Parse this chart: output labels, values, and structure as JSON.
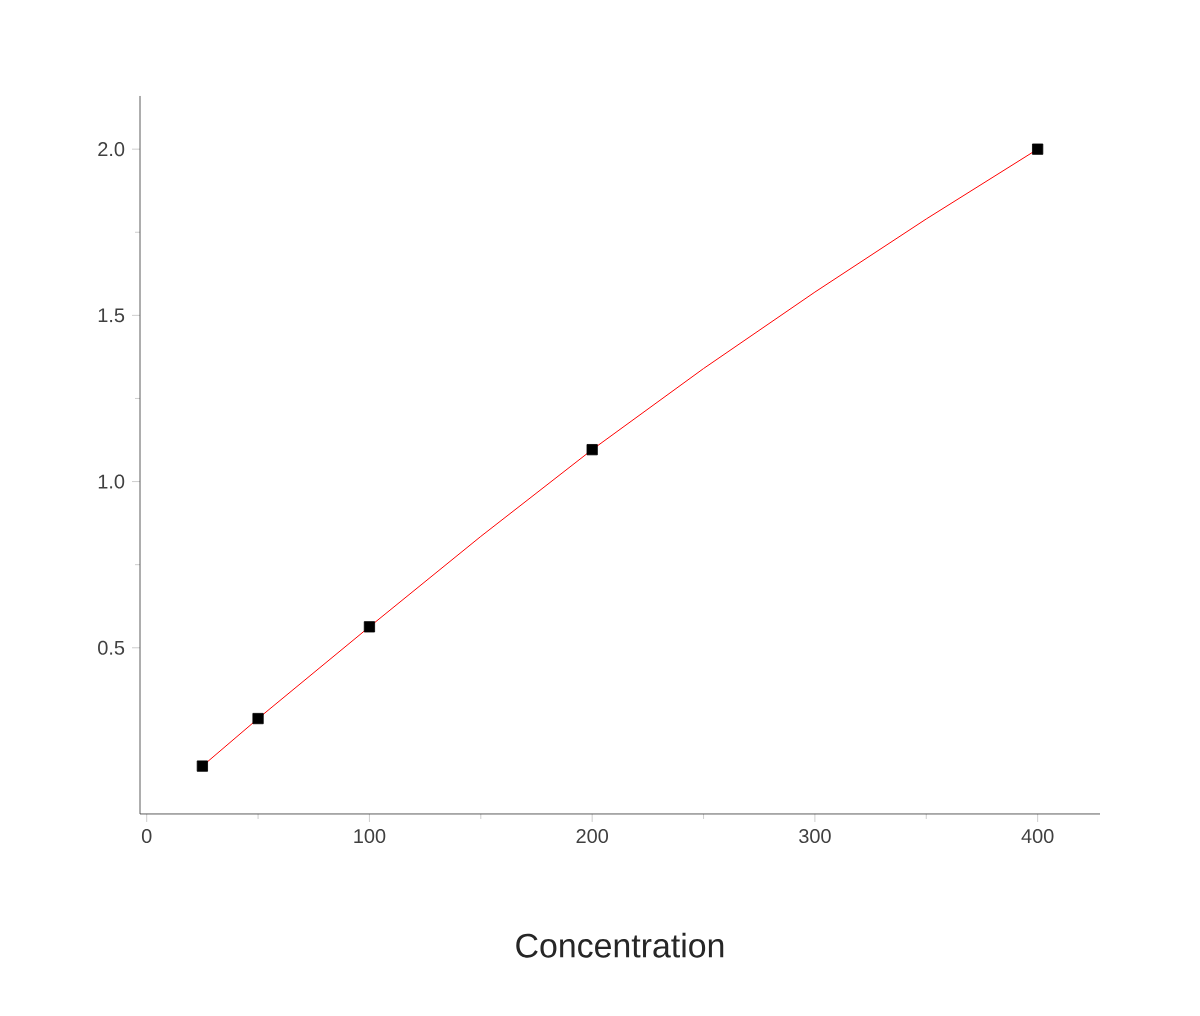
{
  "chart_data": {
    "type": "scatter",
    "xlabel": "Concentration",
    "series": [
      {
        "color": "#000000",
        "marker": "square",
        "x": [
          25,
          50,
          100,
          200,
          400
        ],
        "values": [
          0.144,
          0.287,
          0.563,
          1.096,
          2.0
        ]
      },
      {
        "type": "line",
        "color": "#ff0000",
        "marker": "none",
        "x": [
          25,
          50,
          100,
          150,
          200,
          250,
          300,
          350,
          400
        ],
        "values": [
          0.144,
          0.287,
          0.563,
          0.835,
          1.096,
          1.34,
          1.57,
          1.79,
          2.0
        ]
      }
    ],
    "xlim": [
      -3,
      428
    ],
    "ylim": [
      0,
      2.16
    ],
    "xticks": [
      0,
      100,
      200,
      300,
      400
    ],
    "yticks": [
      {
        "value": 0.5,
        "label": "0.5"
      },
      {
        "value": 1.0,
        "label": "1.0"
      },
      {
        "value": 1.5,
        "label": "1.5"
      },
      {
        "value": 2.0,
        "label": "2.0"
      }
    ],
    "grid": false
  }
}
